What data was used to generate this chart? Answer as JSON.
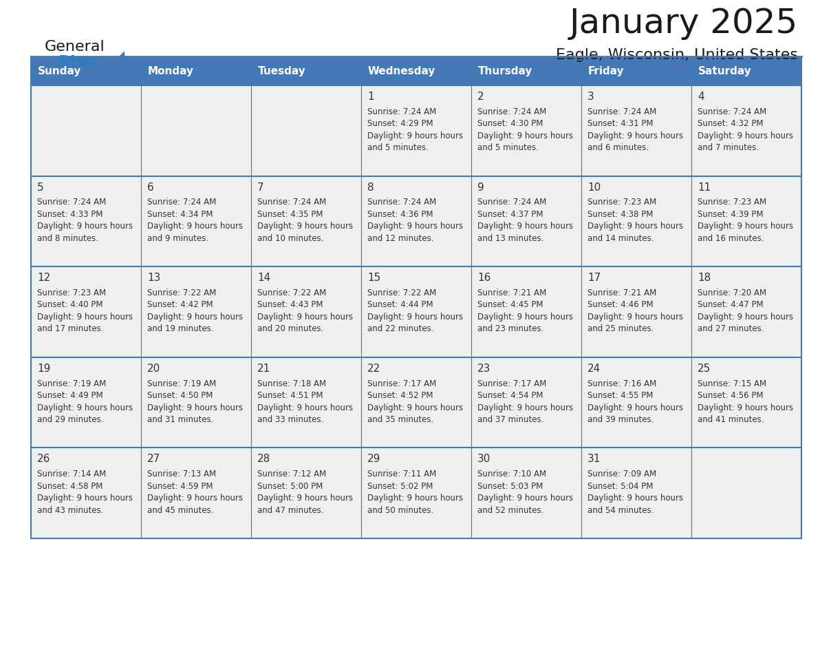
{
  "title": "January 2025",
  "subtitle": "Eagle, Wisconsin, United States",
  "header_bg_color": "#4479b5",
  "header_text_color": "#ffffff",
  "cell_bg_color": "#efefef",
  "border_color": "#4479b5",
  "title_color": "#1a1a1a",
  "subtitle_color": "#1a1a1a",
  "text_color": "#333333",
  "day_names": [
    "Sunday",
    "Monday",
    "Tuesday",
    "Wednesday",
    "Thursday",
    "Friday",
    "Saturday"
  ],
  "logo_general_color": "#1a1a1a",
  "logo_blue_color": "#2a7fc1",
  "days_data": [
    {
      "day": 1,
      "col": 3,
      "row": 0,
      "sunrise": "7:24 AM",
      "sunset": "4:29 PM",
      "daylight": "9 hours and 5 minutes."
    },
    {
      "day": 2,
      "col": 4,
      "row": 0,
      "sunrise": "7:24 AM",
      "sunset": "4:30 PM",
      "daylight": "9 hours and 5 minutes."
    },
    {
      "day": 3,
      "col": 5,
      "row": 0,
      "sunrise": "7:24 AM",
      "sunset": "4:31 PM",
      "daylight": "9 hours and 6 minutes."
    },
    {
      "day": 4,
      "col": 6,
      "row": 0,
      "sunrise": "7:24 AM",
      "sunset": "4:32 PM",
      "daylight": "9 hours and 7 minutes."
    },
    {
      "day": 5,
      "col": 0,
      "row": 1,
      "sunrise": "7:24 AM",
      "sunset": "4:33 PM",
      "daylight": "9 hours and 8 minutes."
    },
    {
      "day": 6,
      "col": 1,
      "row": 1,
      "sunrise": "7:24 AM",
      "sunset": "4:34 PM",
      "daylight": "9 hours and 9 minutes."
    },
    {
      "day": 7,
      "col": 2,
      "row": 1,
      "sunrise": "7:24 AM",
      "sunset": "4:35 PM",
      "daylight": "9 hours and 10 minutes."
    },
    {
      "day": 8,
      "col": 3,
      "row": 1,
      "sunrise": "7:24 AM",
      "sunset": "4:36 PM",
      "daylight": "9 hours and 12 minutes."
    },
    {
      "day": 9,
      "col": 4,
      "row": 1,
      "sunrise": "7:24 AM",
      "sunset": "4:37 PM",
      "daylight": "9 hours and 13 minutes."
    },
    {
      "day": 10,
      "col": 5,
      "row": 1,
      "sunrise": "7:23 AM",
      "sunset": "4:38 PM",
      "daylight": "9 hours and 14 minutes."
    },
    {
      "day": 11,
      "col": 6,
      "row": 1,
      "sunrise": "7:23 AM",
      "sunset": "4:39 PM",
      "daylight": "9 hours and 16 minutes."
    },
    {
      "day": 12,
      "col": 0,
      "row": 2,
      "sunrise": "7:23 AM",
      "sunset": "4:40 PM",
      "daylight": "9 hours and 17 minutes."
    },
    {
      "day": 13,
      "col": 1,
      "row": 2,
      "sunrise": "7:22 AM",
      "sunset": "4:42 PM",
      "daylight": "9 hours and 19 minutes."
    },
    {
      "day": 14,
      "col": 2,
      "row": 2,
      "sunrise": "7:22 AM",
      "sunset": "4:43 PM",
      "daylight": "9 hours and 20 minutes."
    },
    {
      "day": 15,
      "col": 3,
      "row": 2,
      "sunrise": "7:22 AM",
      "sunset": "4:44 PM",
      "daylight": "9 hours and 22 minutes."
    },
    {
      "day": 16,
      "col": 4,
      "row": 2,
      "sunrise": "7:21 AM",
      "sunset": "4:45 PM",
      "daylight": "9 hours and 23 minutes."
    },
    {
      "day": 17,
      "col": 5,
      "row": 2,
      "sunrise": "7:21 AM",
      "sunset": "4:46 PM",
      "daylight": "9 hours and 25 minutes."
    },
    {
      "day": 18,
      "col": 6,
      "row": 2,
      "sunrise": "7:20 AM",
      "sunset": "4:47 PM",
      "daylight": "9 hours and 27 minutes."
    },
    {
      "day": 19,
      "col": 0,
      "row": 3,
      "sunrise": "7:19 AM",
      "sunset": "4:49 PM",
      "daylight": "9 hours and 29 minutes."
    },
    {
      "day": 20,
      "col": 1,
      "row": 3,
      "sunrise": "7:19 AM",
      "sunset": "4:50 PM",
      "daylight": "9 hours and 31 minutes."
    },
    {
      "day": 21,
      "col": 2,
      "row": 3,
      "sunrise": "7:18 AM",
      "sunset": "4:51 PM",
      "daylight": "9 hours and 33 minutes."
    },
    {
      "day": 22,
      "col": 3,
      "row": 3,
      "sunrise": "7:17 AM",
      "sunset": "4:52 PM",
      "daylight": "9 hours and 35 minutes."
    },
    {
      "day": 23,
      "col": 4,
      "row": 3,
      "sunrise": "7:17 AM",
      "sunset": "4:54 PM",
      "daylight": "9 hours and 37 minutes."
    },
    {
      "day": 24,
      "col": 5,
      "row": 3,
      "sunrise": "7:16 AM",
      "sunset": "4:55 PM",
      "daylight": "9 hours and 39 minutes."
    },
    {
      "day": 25,
      "col": 6,
      "row": 3,
      "sunrise": "7:15 AM",
      "sunset": "4:56 PM",
      "daylight": "9 hours and 41 minutes."
    },
    {
      "day": 26,
      "col": 0,
      "row": 4,
      "sunrise": "7:14 AM",
      "sunset": "4:58 PM",
      "daylight": "9 hours and 43 minutes."
    },
    {
      "day": 27,
      "col": 1,
      "row": 4,
      "sunrise": "7:13 AM",
      "sunset": "4:59 PM",
      "daylight": "9 hours and 45 minutes."
    },
    {
      "day": 28,
      "col": 2,
      "row": 4,
      "sunrise": "7:12 AM",
      "sunset": "5:00 PM",
      "daylight": "9 hours and 47 minutes."
    },
    {
      "day": 29,
      "col": 3,
      "row": 4,
      "sunrise": "7:11 AM",
      "sunset": "5:02 PM",
      "daylight": "9 hours and 50 minutes."
    },
    {
      "day": 30,
      "col": 4,
      "row": 4,
      "sunrise": "7:10 AM",
      "sunset": "5:03 PM",
      "daylight": "9 hours and 52 minutes."
    },
    {
      "day": 31,
      "col": 5,
      "row": 4,
      "sunrise": "7:09 AM",
      "sunset": "5:04 PM",
      "daylight": "9 hours and 54 minutes."
    }
  ]
}
